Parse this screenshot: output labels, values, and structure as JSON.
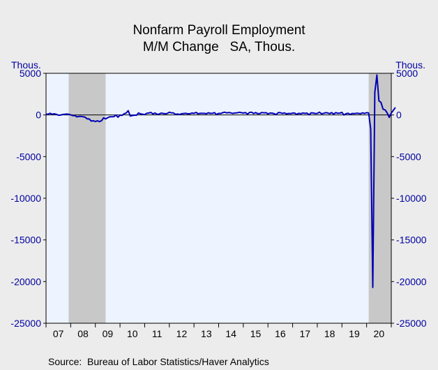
{
  "chart_data": {
    "type": "line",
    "title": "Nonfarm Payroll Employment",
    "subtitle": "M/M Change   SA, Thous.",
    "ylabel_left": "Thous.",
    "ylabel_right": "Thous.",
    "source": "Source:  Bureau of Labor Statistics/Haver Analytics",
    "ylim": [
      -25000,
      5000
    ],
    "yticks": [
      "5000",
      "0",
      "-5000",
      "-10000",
      "-15000",
      "-20000",
      "-25000"
    ],
    "ytick_values": [
      5000,
      0,
      -5000,
      -10000,
      -15000,
      -20000,
      -25000
    ],
    "xlim": [
      2007.0,
      2021.0
    ],
    "xticks": [
      "07",
      "08",
      "09",
      "10",
      "11",
      "12",
      "13",
      "14",
      "15",
      "16",
      "17",
      "18",
      "19",
      "20"
    ],
    "recessions": [
      [
        2007.917,
        2009.417
      ],
      [
        2020.083,
        2021.0
      ]
    ],
    "colors": {
      "series": "#0000b4",
      "plot_bg": "#eef4ff",
      "recession": "#c8c8c8",
      "page_bg": "#ececec",
      "axis_text": "#0000a0"
    },
    "grid": false,
    "series": [
      {
        "values": [
          [
            2007.0,
            100
          ],
          [
            2007.083,
            90
          ],
          [
            2007.167,
            200
          ],
          [
            2007.25,
            80
          ],
          [
            2007.333,
            140
          ],
          [
            2007.417,
            80
          ],
          [
            2007.5,
            -30
          ],
          [
            2007.583,
            -20
          ],
          [
            2007.667,
            60
          ],
          [
            2007.75,
            80
          ],
          [
            2007.833,
            110
          ],
          [
            2007.917,
            90
          ],
          [
            2008.0,
            10
          ],
          [
            2008.083,
            -80
          ],
          [
            2008.167,
            -70
          ],
          [
            2008.25,
            -230
          ],
          [
            2008.333,
            -180
          ],
          [
            2008.417,
            -170
          ],
          [
            2008.5,
            -210
          ],
          [
            2008.583,
            -270
          ],
          [
            2008.667,
            -460
          ],
          [
            2008.75,
            -480
          ],
          [
            2008.833,
            -730
          ],
          [
            2008.917,
            -700
          ],
          [
            2009.0,
            -790
          ],
          [
            2009.083,
            -700
          ],
          [
            2009.167,
            -800
          ],
          [
            2009.25,
            -690
          ],
          [
            2009.333,
            -350
          ],
          [
            2009.417,
            -470
          ],
          [
            2009.5,
            -330
          ],
          [
            2009.583,
            -220
          ],
          [
            2009.667,
            -220
          ],
          [
            2009.75,
            -200
          ],
          [
            2009.833,
            -10
          ],
          [
            2009.917,
            -270
          ],
          [
            2010.0,
            -20
          ],
          [
            2010.083,
            -50
          ],
          [
            2010.167,
            150
          ],
          [
            2010.25,
            230
          ],
          [
            2010.333,
            520
          ],
          [
            2010.417,
            -130
          ],
          [
            2010.5,
            -70
          ],
          [
            2010.583,
            -20
          ],
          [
            2010.667,
            -40
          ],
          [
            2010.75,
            240
          ],
          [
            2010.833,
            130
          ],
          [
            2010.917,
            90
          ],
          [
            2011.0,
            40
          ],
          [
            2011.083,
            200
          ],
          [
            2011.167,
            230
          ],
          [
            2011.25,
            310
          ],
          [
            2011.333,
            120
          ],
          [
            2011.417,
            230
          ],
          [
            2011.5,
            90
          ],
          [
            2011.583,
            100
          ],
          [
            2011.667,
            220
          ],
          [
            2011.75,
            180
          ],
          [
            2011.833,
            140
          ],
          [
            2011.917,
            180
          ],
          [
            2012.0,
            320
          ],
          [
            2012.083,
            260
          ],
          [
            2012.167,
            240
          ],
          [
            2012.25,
            80
          ],
          [
            2012.333,
            110
          ],
          [
            2012.417,
            60
          ],
          [
            2012.5,
            150
          ],
          [
            2012.583,
            170
          ],
          [
            2012.667,
            200
          ],
          [
            2012.75,
            140
          ],
          [
            2012.833,
            150
          ],
          [
            2012.917,
            230
          ],
          [
            2013.0,
            190
          ],
          [
            2013.083,
            310
          ],
          [
            2013.167,
            140
          ],
          [
            2013.25,
            200
          ],
          [
            2013.333,
            190
          ],
          [
            2013.417,
            190
          ],
          [
            2013.5,
            150
          ],
          [
            2013.583,
            260
          ],
          [
            2013.667,
            190
          ],
          [
            2013.75,
            210
          ],
          [
            2013.833,
            270
          ],
          [
            2013.917,
            50
          ],
          [
            2014.0,
            190
          ],
          [
            2014.083,
            170
          ],
          [
            2014.167,
            270
          ],
          [
            2014.25,
            330
          ],
          [
            2014.333,
            240
          ],
          [
            2014.417,
            300
          ],
          [
            2014.5,
            240
          ],
          [
            2014.583,
            180
          ],
          [
            2014.667,
            250
          ],
          [
            2014.75,
            250
          ],
          [
            2014.833,
            320
          ],
          [
            2014.917,
            270
          ],
          [
            2015.0,
            220
          ],
          [
            2015.083,
            290
          ],
          [
            2015.167,
            100
          ],
          [
            2015.25,
            290
          ],
          [
            2015.333,
            330
          ],
          [
            2015.417,
            170
          ],
          [
            2015.5,
            280
          ],
          [
            2015.583,
            160
          ],
          [
            2015.667,
            160
          ],
          [
            2015.75,
            300
          ],
          [
            2015.833,
            250
          ],
          [
            2015.917,
            270
          ],
          [
            2016.0,
            130
          ],
          [
            2016.083,
            220
          ],
          [
            2016.167,
            220
          ],
          [
            2016.25,
            160
          ],
          [
            2016.333,
            40
          ],
          [
            2016.417,
            290
          ],
          [
            2016.5,
            270
          ],
          [
            2016.583,
            180
          ],
          [
            2016.667,
            250
          ],
          [
            2016.75,
            130
          ],
          [
            2016.833,
            180
          ],
          [
            2016.917,
            160
          ],
          [
            2017.0,
            230
          ],
          [
            2017.083,
            220
          ],
          [
            2017.167,
            70
          ],
          [
            2017.25,
            200
          ],
          [
            2017.333,
            150
          ],
          [
            2017.417,
            240
          ],
          [
            2017.5,
            190
          ],
          [
            2017.583,
            220
          ],
          [
            2017.667,
            20
          ],
          [
            2017.75,
            260
          ],
          [
            2017.833,
            230
          ],
          [
            2017.917,
            170
          ],
          [
            2018.0,
            180
          ],
          [
            2018.083,
            330
          ],
          [
            2018.167,
            150
          ],
          [
            2018.25,
            180
          ],
          [
            2018.333,
            270
          ],
          [
            2018.417,
            240
          ],
          [
            2018.5,
            160
          ],
          [
            2018.583,
            280
          ],
          [
            2018.667,
            110
          ],
          [
            2018.75,
            280
          ],
          [
            2018.833,
            200
          ],
          [
            2018.917,
            220
          ],
          [
            2019.0,
            310
          ],
          [
            2019.083,
            1
          ],
          [
            2019.167,
            150
          ],
          [
            2019.25,
            210
          ],
          [
            2019.333,
            60
          ],
          [
            2019.417,
            180
          ],
          [
            2019.5,
            160
          ],
          [
            2019.583,
            210
          ],
          [
            2019.667,
            190
          ],
          [
            2019.75,
            150
          ],
          [
            2019.833,
            260
          ],
          [
            2019.917,
            180
          ],
          [
            2020.0,
            270
          ],
          [
            2020.083,
            230
          ],
          [
            2020.167,
            -1680
          ],
          [
            2020.25,
            -20700
          ],
          [
            2020.333,
            2700
          ],
          [
            2020.417,
            4800
          ],
          [
            2020.5,
            1700
          ],
          [
            2020.583,
            1500
          ],
          [
            2020.667,
            700
          ],
          [
            2020.75,
            600
          ],
          [
            2020.833,
            250
          ],
          [
            2020.917,
            -300
          ],
          [
            2021.0,
            230
          ],
          [
            2021.083,
            550
          ],
          [
            2021.167,
            900
          ]
        ]
      }
    ]
  }
}
